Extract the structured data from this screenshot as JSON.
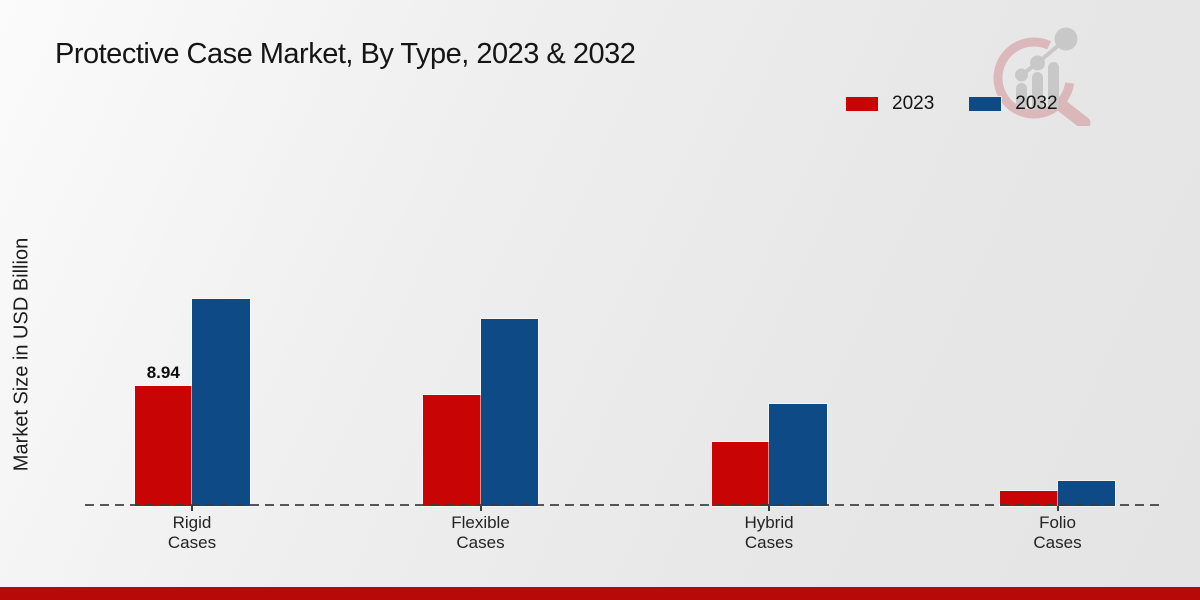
{
  "title": "Protective Case Market, By Type, 2023 & 2032",
  "y_axis_label": "Market Size in USD Billion",
  "watermark_icon": "magnifier-bar-chart-logo",
  "footer": {
    "bar_color": "#b80909"
  },
  "chart_data": {
    "type": "bar",
    "title": "Protective Case Market, By Type, 2023 & 2032",
    "categories": [
      "Rigid Cases",
      "Flexible Cases",
      "Hybrid Cases",
      "Folio Cases"
    ],
    "series": [
      {
        "name": "2023",
        "color": "#c80404",
        "values": [
          8.94,
          8.3,
          4.8,
          1.1
        ],
        "value_labels": [
          "8.94",
          "",
          "",
          ""
        ]
      },
      {
        "name": "2032",
        "color": "#0e4a85",
        "values": [
          15.4,
          13.9,
          7.6,
          1.9
        ],
        "value_labels": [
          "",
          "",
          "",
          ""
        ]
      }
    ],
    "xlabel": "",
    "ylabel": "Market Size in USD Billion",
    "ylim": [
      0,
      16.5
    ],
    "grid": false,
    "legend_position": "top-right",
    "baseline_style": "dashed",
    "y_axis_ticks_visible": false
  }
}
